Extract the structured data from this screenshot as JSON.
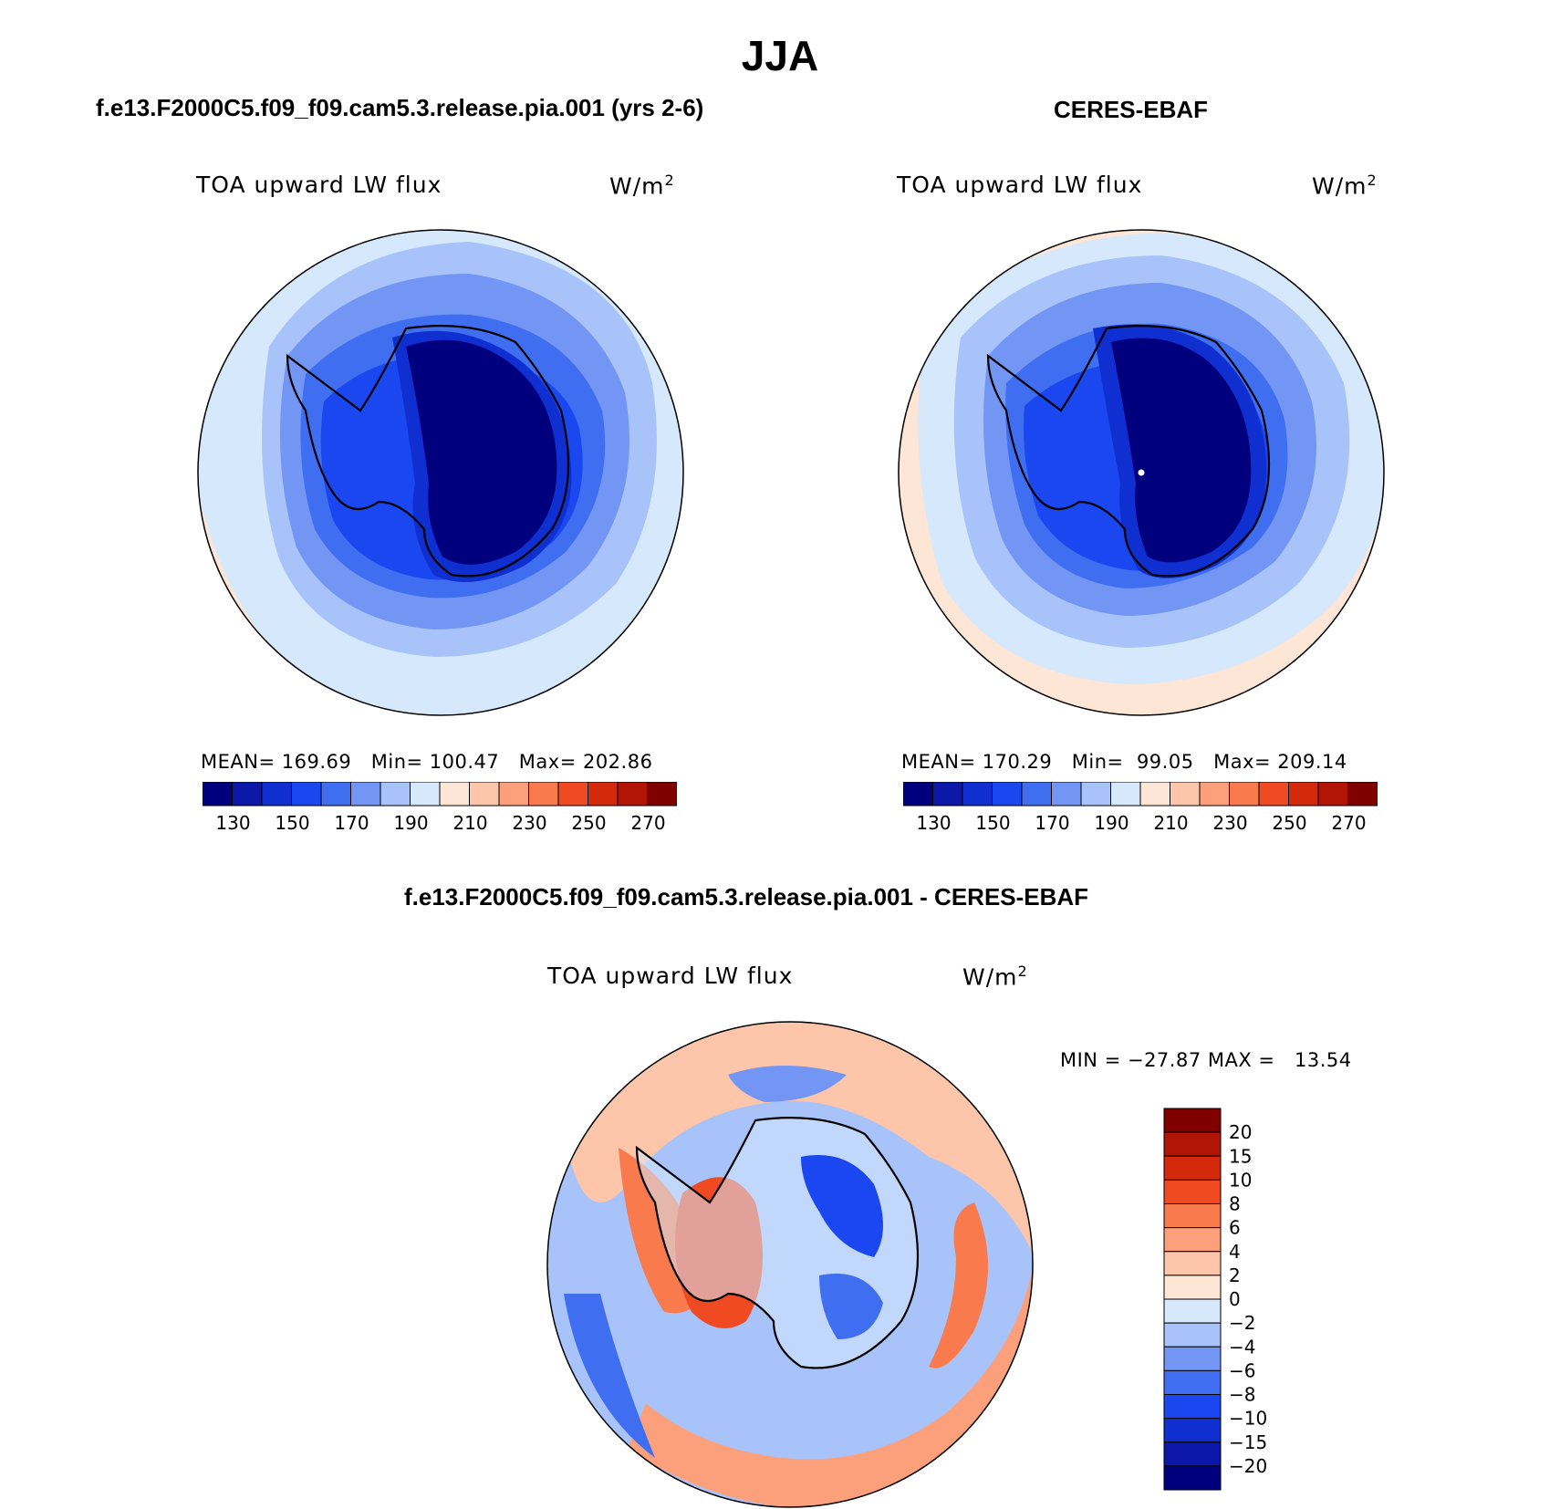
{
  "title": "JJA",
  "panels": [
    {
      "case": "f.e13.F2000C5.f09_f09.cam5.3.release.pia.001 (yrs 2-6)",
      "variable": "TOA upward LW flux",
      "units": "W/m",
      "units_exp": "2",
      "stats": "MEAN= 169.69   Min= 100.47   Max= 202.86"
    },
    {
      "case": "CERES-EBAF",
      "variable": "TOA upward LW flux",
      "units": "W/m",
      "units_exp": "2",
      "stats": "MEAN= 170.29   Min=  99.05   Max= 209.14"
    },
    {
      "case": "f.e13.F2000C5.f09_f09.cam5.3.release.pia.001 - CERES-EBAF",
      "variable": "TOA upward LW flux",
      "units": "W/m",
      "units_exp": "2",
      "stats": "MIN = −27.87 MAX =   13.54"
    }
  ],
  "colorbar_main": {
    "colors": [
      "#00007f",
      "#0a17a8",
      "#0f2fd0",
      "#1a47f0",
      "#3f6ff0",
      "#7396f5",
      "#a8c3fa",
      "#d6e8fc",
      "#fde6d6",
      "#fdc6ab",
      "#fca07b",
      "#f97a4d",
      "#f04a22",
      "#d42a0b",
      "#b01505",
      "#800000"
    ],
    "labels": [
      "130",
      "150",
      "170",
      "190",
      "210",
      "230",
      "250",
      "270"
    ]
  },
  "colorbar_diff": {
    "colors": [
      "#800000",
      "#b01505",
      "#d42a0b",
      "#f04a22",
      "#f97a4d",
      "#fca07b",
      "#fdc6ab",
      "#fde6d6",
      "#d6e8fc",
      "#a8c3fa",
      "#7396f5",
      "#3f6ff0",
      "#1a47f0",
      "#0f2fd0",
      "#0a17a8",
      "#00007f"
    ],
    "labels": [
      "20",
      "15",
      "10",
      "8",
      "6",
      "4",
      "2",
      "0",
      "−2",
      "−4",
      "−6",
      "−8",
      "−10",
      "−15",
      "−20"
    ]
  }
}
